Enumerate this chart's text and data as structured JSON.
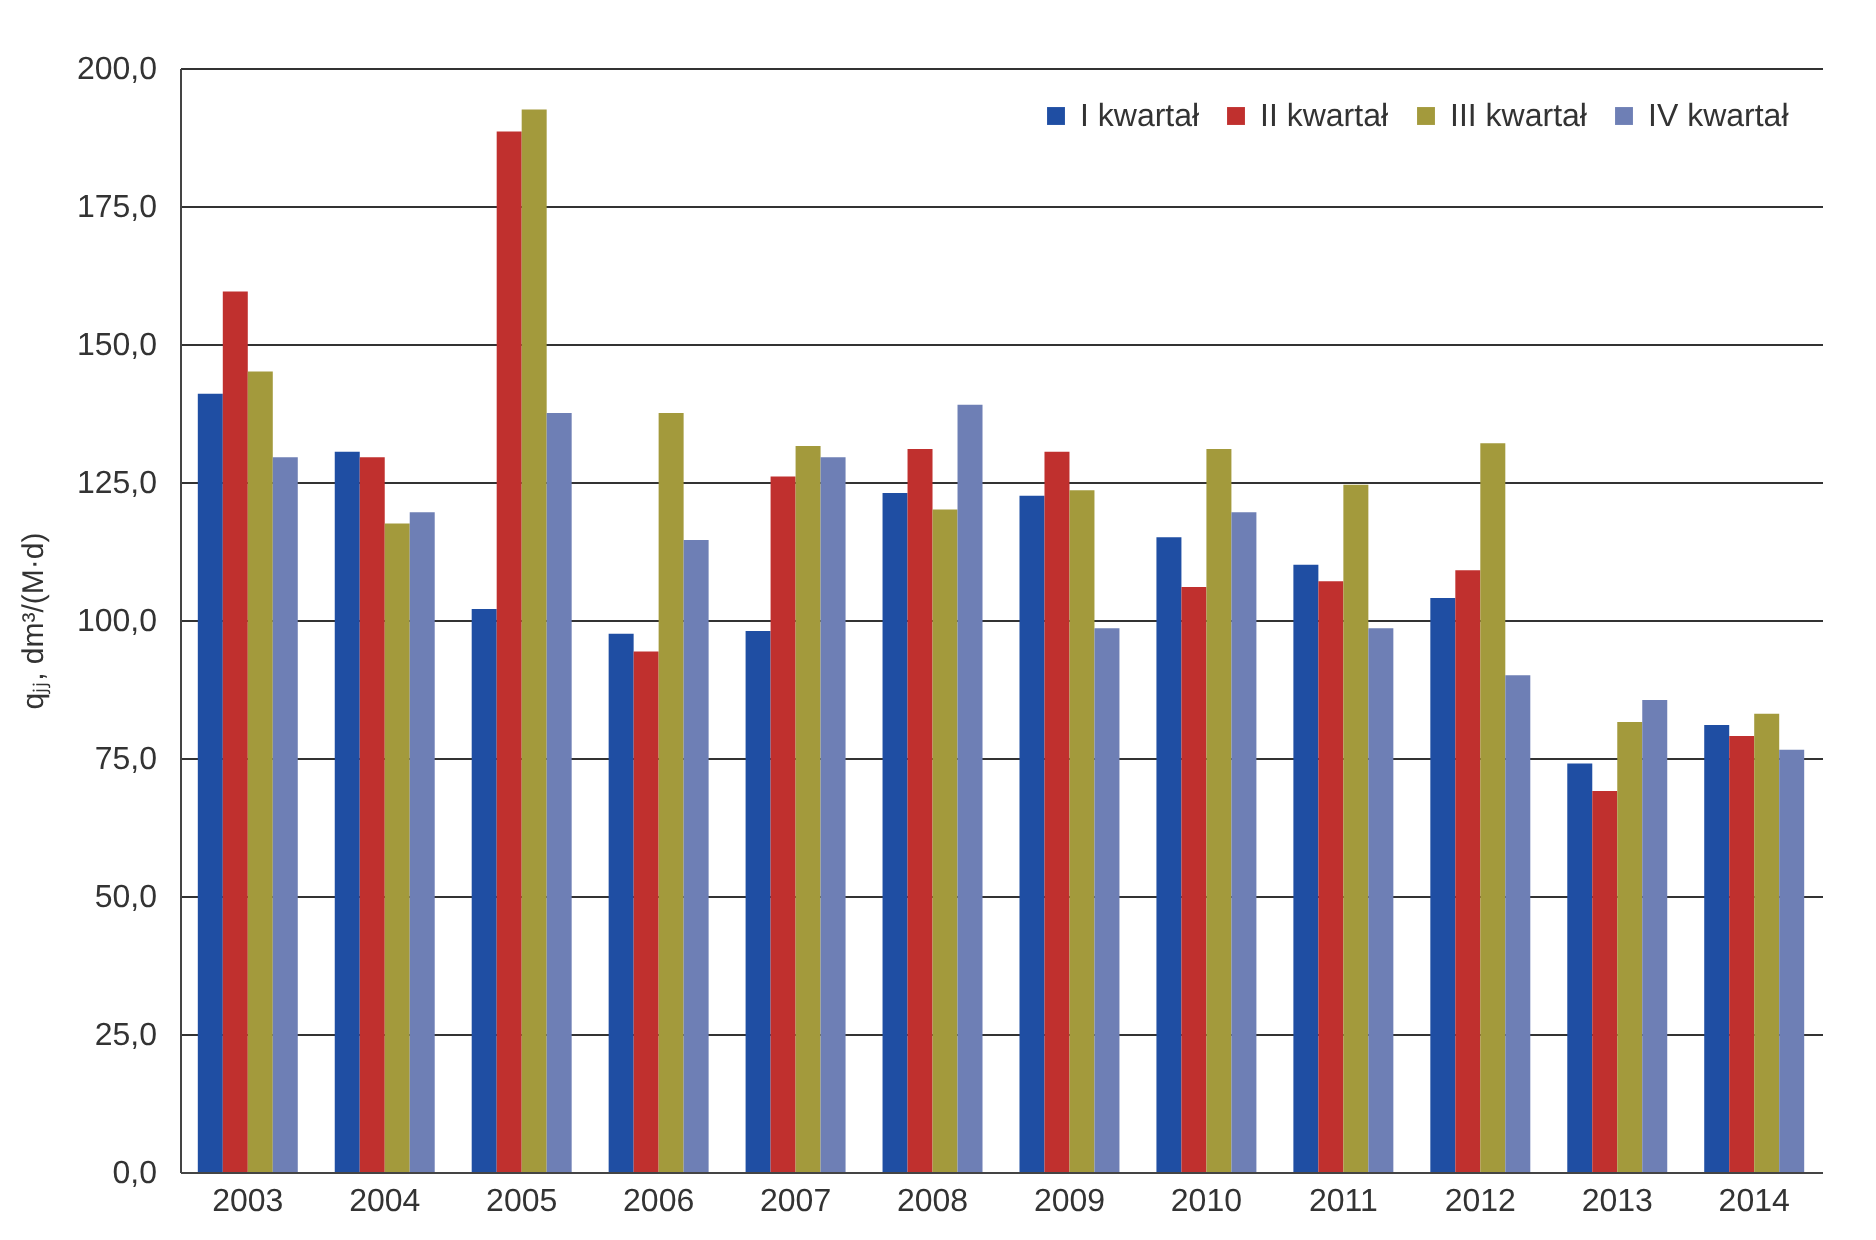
{
  "chart_data": {
    "type": "bar",
    "ylabel": "qⱼⱼ, dm³/(M·d)",
    "categories": [
      "2003",
      "2004",
      "2005",
      "2006",
      "2007",
      "2008",
      "2009",
      "2010",
      "2011",
      "2012",
      "2013",
      "2014"
    ],
    "series": [
      {
        "name": "I kwartał",
        "color": "#1f4ea3",
        "values": [
          141,
          130.5,
          102,
          97.5,
          98,
          123,
          122.5,
          115,
          110,
          104,
          74,
          81
        ]
      },
      {
        "name": "II kwartał",
        "color": "#c0302e",
        "values": [
          159.5,
          129.5,
          188.5,
          94.3,
          126,
          131,
          130.5,
          106,
          107,
          109,
          69,
          79
        ]
      },
      {
        "name": "III kwartał",
        "color": "#a39a3c",
        "values": [
          145,
          117.5,
          192.5,
          137.5,
          131.5,
          120,
          123.5,
          131,
          124.5,
          132,
          81.5,
          83
        ]
      },
      {
        "name": "IV kwartał",
        "color": "#6e7fb5",
        "values": [
          129.5,
          119.5,
          137.5,
          114.5,
          129.5,
          139,
          98.5,
          119.5,
          98.5,
          90,
          85.5,
          76.5
        ]
      }
    ],
    "ylim": [
      0,
      200
    ],
    "yticks": [
      {
        "value": 0,
        "label": "0,0"
      },
      {
        "value": 25,
        "label": "25,0"
      },
      {
        "value": 50,
        "label": "50,0"
      },
      {
        "value": 75,
        "label": "75,0"
      },
      {
        "value": 100,
        "label": "100,0"
      },
      {
        "value": 125,
        "label": "125,0"
      },
      {
        "value": 150,
        "label": "150,0"
      },
      {
        "value": 175,
        "label": "175,0"
      },
      {
        "value": 200,
        "label": "200,0"
      }
    ],
    "grid": "y",
    "legend": "top right"
  }
}
